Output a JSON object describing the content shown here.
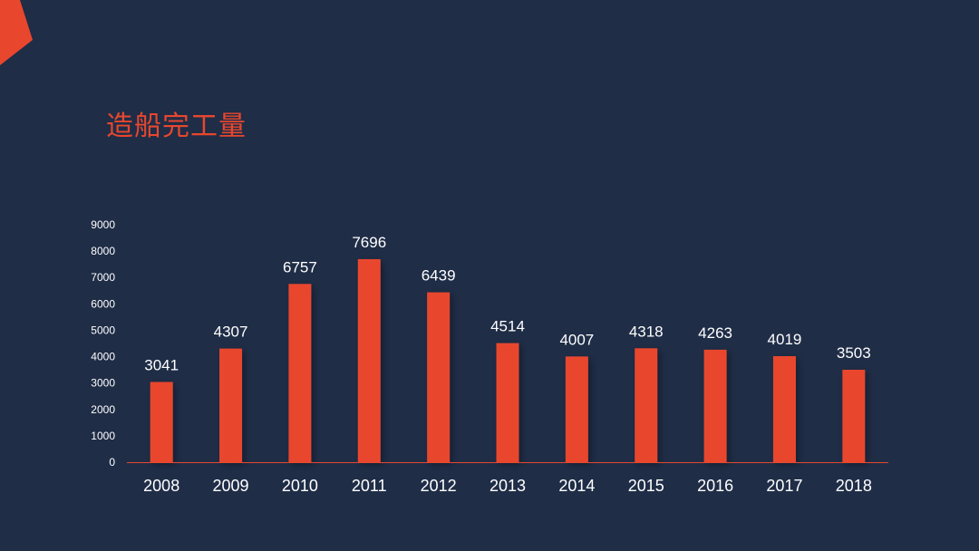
{
  "title": "造船完工量",
  "colors": {
    "background": "#1f2d47",
    "accent": "#e8472e",
    "text": "#ffffff"
  },
  "chart_data": {
    "type": "bar",
    "title": "造船完工量",
    "categories": [
      "2008",
      "2009",
      "2010",
      "2011",
      "2012",
      "2013",
      "2014",
      "2015",
      "2016",
      "2017",
      "2018"
    ],
    "values": [
      3041,
      4307,
      6757,
      7696,
      6439,
      4514,
      4007,
      4318,
      4263,
      4019,
      3503
    ],
    "xlabel": "",
    "ylabel": "",
    "ylim": [
      0,
      9000
    ],
    "yticks": [
      0,
      1000,
      2000,
      3000,
      4000,
      5000,
      6000,
      7000,
      8000,
      9000
    ],
    "data_labels": true,
    "grid": false,
    "legend": "none"
  }
}
